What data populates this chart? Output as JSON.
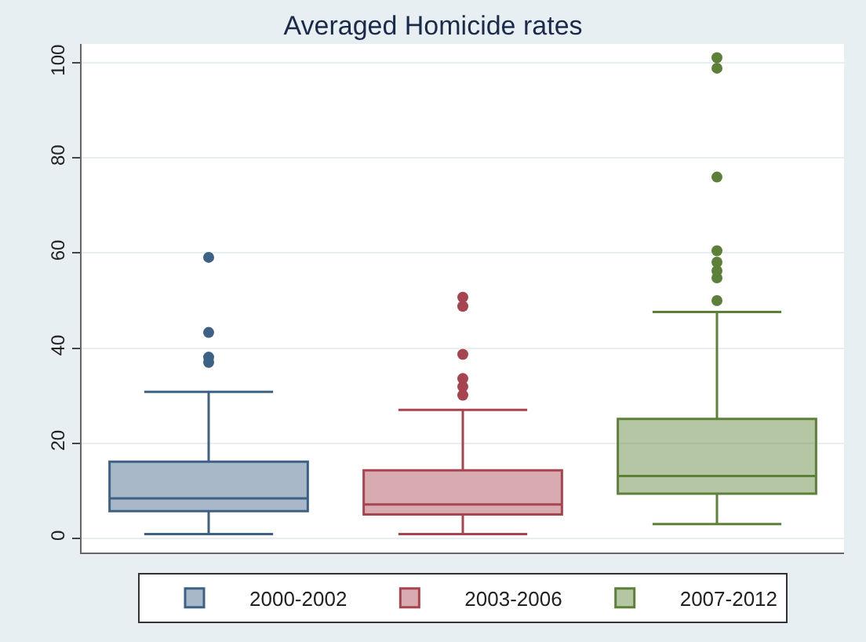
{
  "chart_data": {
    "type": "box",
    "title": "Averaged Homicide rates",
    "categories": [
      null
    ],
    "series": [
      {
        "name": "2000-2002",
        "color": "#3d6185",
        "boxes": [
          {
            "low": 0.9,
            "q1": 5.7,
            "median": 8.4,
            "q3": 16.1,
            "high": 30.8,
            "outliers": [
              59.1,
              43.3,
              38.1,
              37.0
            ]
          }
        ]
      },
      {
        "name": "2003-2006",
        "color": "#a8444f",
        "boxes": [
          {
            "low": 0.9,
            "q1": 5.0,
            "median": 7.1,
            "q3": 14.3,
            "high": 27.0,
            "outliers": [
              50.7,
              48.8,
              38.7,
              33.6,
              31.9,
              30.1
            ]
          }
        ]
      },
      {
        "name": "2007-2012",
        "color": "#5c8038",
        "boxes": [
          {
            "low": 3.0,
            "q1": 9.4,
            "median": 13.1,
            "q3": 25.1,
            "high": 47.6,
            "outliers": [
              101.1,
              98.9,
              76.0,
              60.5,
              58.1,
              56.3,
              54.8,
              50.0
            ]
          }
        ]
      }
    ],
    "ylim": [
      -3,
      104
    ],
    "yticks": [
      0,
      20,
      40,
      60,
      80,
      100
    ],
    "grid": "y",
    "legend": "bottom",
    "marker": "circle"
  }
}
